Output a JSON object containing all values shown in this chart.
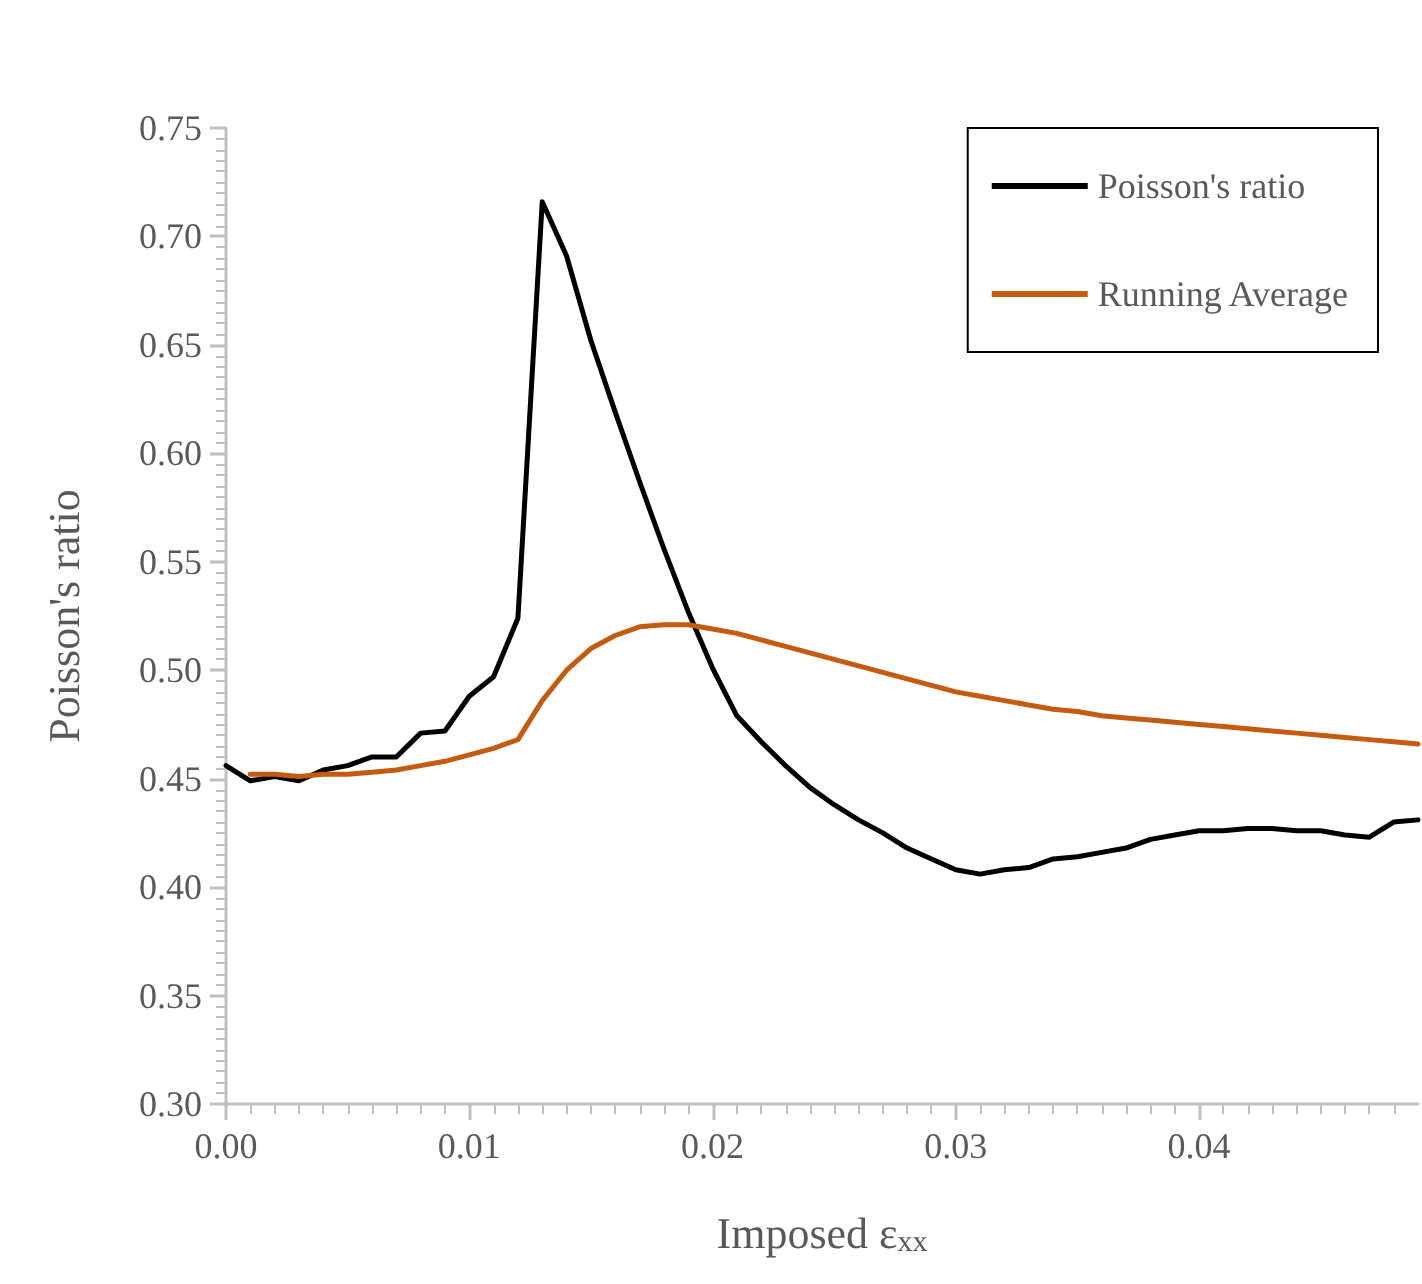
{
  "chart_data": {
    "type": "line",
    "xlabel": "Imposed ε$_{xx}$",
    "ylabel": "Poisson's ratio",
    "xlim": [
      0,
      0.049
    ],
    "ylim": [
      0.3,
      0.75
    ],
    "xticks": [
      {
        "value": 0,
        "label": "0.00"
      },
      {
        "value": 0.01,
        "label": "0.01"
      },
      {
        "value": 0.02,
        "label": "0.02"
      },
      {
        "value": 0.03,
        "label": "0.03"
      },
      {
        "value": 0.04,
        "label": "0.04"
      }
    ],
    "yticks": [
      {
        "value": 0.3,
        "label": "0.30"
      },
      {
        "value": 0.35,
        "label": "0.35"
      },
      {
        "value": 0.4,
        "label": "0.40"
      },
      {
        "value": 0.45,
        "label": "0.45"
      },
      {
        "value": 0.5,
        "label": "0.50"
      },
      {
        "value": 0.55,
        "label": "0.55"
      },
      {
        "value": 0.6,
        "label": "0.60"
      },
      {
        "value": 0.65,
        "label": "0.65"
      },
      {
        "value": 0.7,
        "label": "0.70"
      },
      {
        "value": 0.75,
        "label": "0.75"
      }
    ],
    "grid": false,
    "legend": "top right",
    "marker": "none",
    "line_style": "solid",
    "series": [
      {
        "name": "Poisson's ratio",
        "color": "#000000",
        "x": [
          0,
          0.001,
          0.002,
          0.003,
          0.004,
          0.005,
          0.006,
          0.007,
          0.008,
          0.009,
          0.01,
          0.011,
          0.012,
          0.013,
          0.014,
          0.015,
          0.016,
          0.017,
          0.018,
          0.019,
          0.02,
          0.021,
          0.022,
          0.023,
          0.024,
          0.025,
          0.026,
          0.027,
          0.028,
          0.029,
          0.03,
          0.031,
          0.032,
          0.033,
          0.034,
          0.035,
          0.036,
          0.037,
          0.038,
          0.039,
          0.04,
          0.041,
          0.042,
          0.043,
          0.044,
          0.045,
          0.046,
          0.047,
          0.048,
          0.049
        ],
        "values": [
          0.456,
          0.449,
          0.451,
          0.449,
          0.454,
          0.456,
          0.46,
          0.46,
          0.471,
          0.472,
          0.488,
          0.497,
          0.524,
          0.716,
          0.691,
          0.652,
          0.619,
          0.587,
          0.556,
          0.527,
          0.501,
          0.479,
          0.467,
          0.456,
          0.446,
          0.438,
          0.431,
          0.425,
          0.418,
          0.413,
          0.408,
          0.406,
          0.408,
          0.409,
          0.413,
          0.414,
          0.416,
          0.418,
          0.422,
          0.424,
          0.426,
          0.426,
          0.427,
          0.427,
          0.426,
          0.426,
          0.424,
          0.423,
          0.43,
          0.431
        ]
      },
      {
        "name": "Running Average",
        "color": "#c55a11",
        "x": [
          0.001,
          0.002,
          0.003,
          0.004,
          0.005,
          0.006,
          0.007,
          0.008,
          0.009,
          0.01,
          0.011,
          0.012,
          0.013,
          0.014,
          0.015,
          0.016,
          0.017,
          0.018,
          0.019,
          0.02,
          0.021,
          0.022,
          0.023,
          0.024,
          0.025,
          0.026,
          0.027,
          0.028,
          0.029,
          0.03,
          0.031,
          0.032,
          0.033,
          0.034,
          0.035,
          0.036,
          0.037,
          0.038,
          0.039,
          0.04,
          0.041,
          0.042,
          0.043,
          0.044,
          0.045,
          0.046,
          0.047,
          0.048,
          0.049
        ],
        "values": [
          0.452,
          0.452,
          0.451,
          0.452,
          0.452,
          0.453,
          0.454,
          0.456,
          0.458,
          0.461,
          0.464,
          0.468,
          0.486,
          0.5,
          0.51,
          0.516,
          0.52,
          0.521,
          0.521,
          0.519,
          0.517,
          0.514,
          0.511,
          0.508,
          0.505,
          0.502,
          0.499,
          0.496,
          0.493,
          0.49,
          0.488,
          0.486,
          0.484,
          0.482,
          0.481,
          0.479,
          0.478,
          0.477,
          0.476,
          0.475,
          0.474,
          0.473,
          0.472,
          0.471,
          0.47,
          0.469,
          0.468,
          0.467,
          0.466
        ]
      }
    ]
  }
}
